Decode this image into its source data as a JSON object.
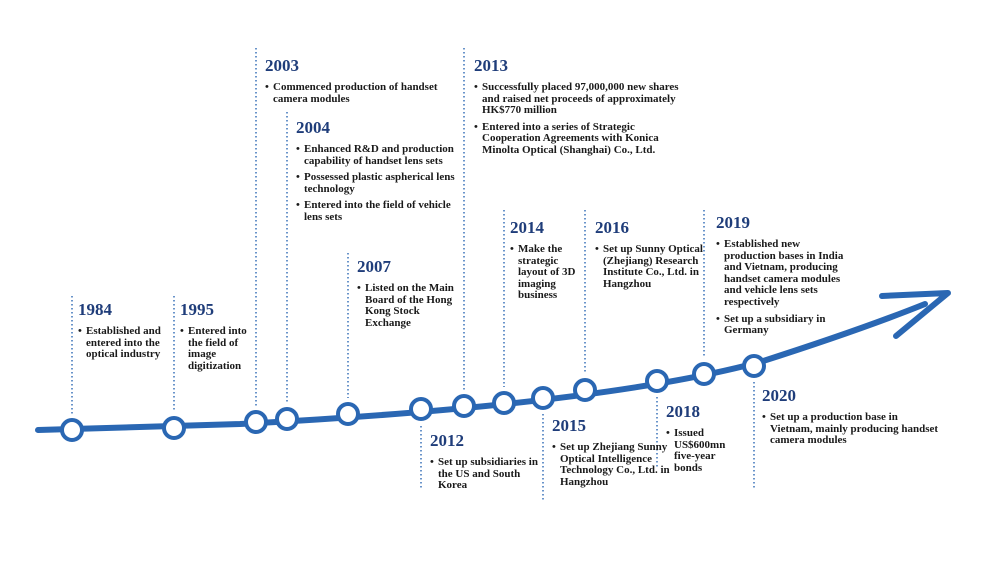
{
  "events": [
    {
      "year": "1984",
      "bullets": [
        "Established and entered into the optical industry"
      ]
    },
    {
      "year": "1995",
      "bullets": [
        "Entered into the field of image digitization"
      ]
    },
    {
      "year": "2003",
      "bullets": [
        "Commenced production of handset camera modules"
      ]
    },
    {
      "year": "2004",
      "bullets": [
        "Enhanced R&D and production capability of handset lens sets",
        "Possessed plastic aspherical lens technology",
        "Entered into the field of vehicle lens sets"
      ]
    },
    {
      "year": "2007",
      "bullets": [
        "Listed on the Main Board of the Hong Kong Stock Exchange"
      ]
    },
    {
      "year": "2012",
      "bullets": [
        "Set up subsidiaries in the US and South Korea"
      ]
    },
    {
      "year": "2013",
      "bullets": [
        "Successfully placed 97,000,000 new shares and raised net proceeds of approximately HK$770 million",
        "Entered into a series of Strategic Cooperation Agreements with Konica Minolta Optical (Shanghai) Co., Ltd."
      ]
    },
    {
      "year": "2014",
      "bullets": [
        "Make the strategic layout of 3D imaging business"
      ]
    },
    {
      "year": "2015",
      "bullets": [
        "Set up Zhejiang Sunny Optical Intelligence Technology Co., Ltd. in Hangzhou"
      ]
    },
    {
      "year": "2016",
      "bullets": [
        "Set up Sunny Optical (Zhejiang) Research Institute Co., Ltd. in Hangzhou"
      ]
    },
    {
      "year": "2018",
      "bullets": [
        "Issued US$600mn five-year bonds"
      ]
    },
    {
      "year": "2019",
      "bullets": [
        "Established new production bases in India and Vietnam, producing handset camera modules and vehicle lens sets respectively",
        "Set up a subsidiary in Germany"
      ]
    },
    {
      "year": "2020",
      "bullets": [
        "Set up a production base in Vietnam, mainly producing handset camera modules"
      ]
    }
  ],
  "colors": {
    "line": "#2a67b3",
    "year": "#1f3d7a",
    "text": "#1a1a1a"
  }
}
